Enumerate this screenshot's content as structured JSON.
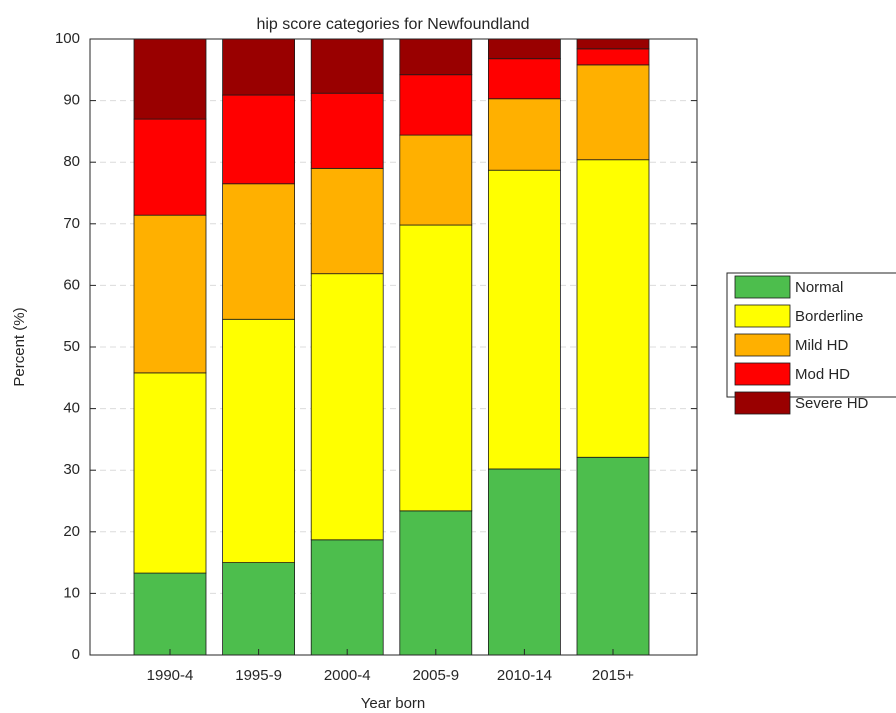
{
  "chart_data": {
    "type": "stacked_bar",
    "title": "hip score categories for Newfoundland",
    "x_label": "Year born",
    "y_label": "Percent (%)",
    "categories": [
      "1990-4",
      "1995-9",
      "2000-4",
      "2005-9",
      "2010-14",
      "2015+"
    ],
    "series": [
      {
        "name": "Normal",
        "color": "#4dbe4d",
        "values": [
          13.3,
          15.0,
          18.7,
          23.4,
          30.2,
          32.1
        ]
      },
      {
        "name": "Borderline",
        "color": "#ffff00",
        "values": [
          32.5,
          39.5,
          43.2,
          46.4,
          48.5,
          48.3
        ]
      },
      {
        "name": "Mild HD",
        "color": "#ffb000",
        "values": [
          25.6,
          22.0,
          17.1,
          14.6,
          11.6,
          15.4
        ]
      },
      {
        "name": "Mod HD",
        "color": "#ff0000",
        "values": [
          15.6,
          14.4,
          12.2,
          9.8,
          6.5,
          2.6
        ]
      },
      {
        "name": "Severe HD",
        "color": "#990000",
        "values": [
          13.0,
          9.1,
          8.8,
          5.8,
          3.2,
          1.6
        ]
      }
    ],
    "ylim": [
      0,
      100
    ],
    "yticks": [
      0,
      10,
      20,
      30,
      40,
      50,
      60,
      70,
      80,
      90,
      100
    ],
    "grid": true,
    "legend": "right"
  }
}
